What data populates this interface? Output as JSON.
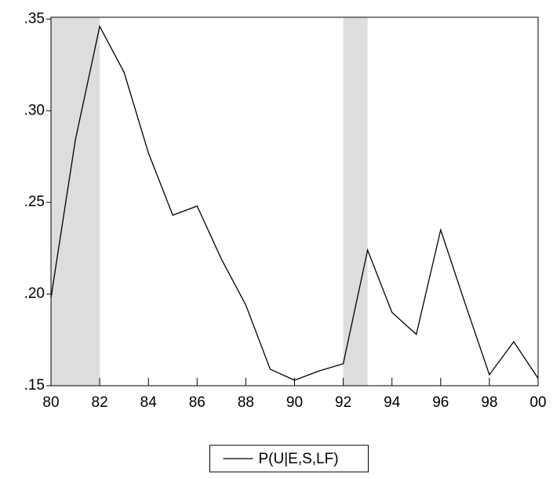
{
  "chart_data": {
    "type": "line",
    "x": [
      1980,
      1981,
      1982,
      1983,
      1984,
      1985,
      1986,
      1987,
      1988,
      1989,
      1990,
      1991,
      1992,
      1993,
      1994,
      1995,
      1996,
      1997,
      1998,
      1999,
      2000
    ],
    "series": [
      {
        "name": "P(U|E,S,LF)",
        "color": "#000000",
        "values": [
          0.198,
          0.284,
          0.346,
          0.321,
          0.277,
          0.243,
          0.248,
          0.219,
          0.194,
          0.159,
          0.153,
          0.158,
          0.162,
          0.224,
          0.19,
          0.178,
          0.235,
          0.195,
          0.156,
          0.174,
          0.154
        ]
      }
    ],
    "shaded_regions": [
      [
        1980,
        1982
      ],
      [
        1992,
        1993
      ]
    ],
    "shade_color": "#dddddd",
    "xlim": [
      1980,
      2000
    ],
    "xticks": [
      {
        "value": 1980,
        "label": "80"
      },
      {
        "value": 1982,
        "label": "82"
      },
      {
        "value": 1984,
        "label": "84"
      },
      {
        "value": 1986,
        "label": "86"
      },
      {
        "value": 1988,
        "label": "88"
      },
      {
        "value": 1990,
        "label": "90"
      },
      {
        "value": 1992,
        "label": "92"
      },
      {
        "value": 1994,
        "label": "94"
      },
      {
        "value": 1996,
        "label": "96"
      },
      {
        "value": 1998,
        "label": "98"
      },
      {
        "value": 2000,
        "label": "00"
      }
    ],
    "ylim": [
      0.15,
      0.351
    ],
    "yticks": [
      {
        "value": 0.15,
        "label": ".15"
      },
      {
        "value": 0.2,
        "label": ".20"
      },
      {
        "value": 0.25,
        "label": ".25"
      },
      {
        "value": 0.3,
        "label": ".30"
      },
      {
        "value": 0.35,
        "label": ".35"
      }
    ],
    "legend": "bottom"
  }
}
